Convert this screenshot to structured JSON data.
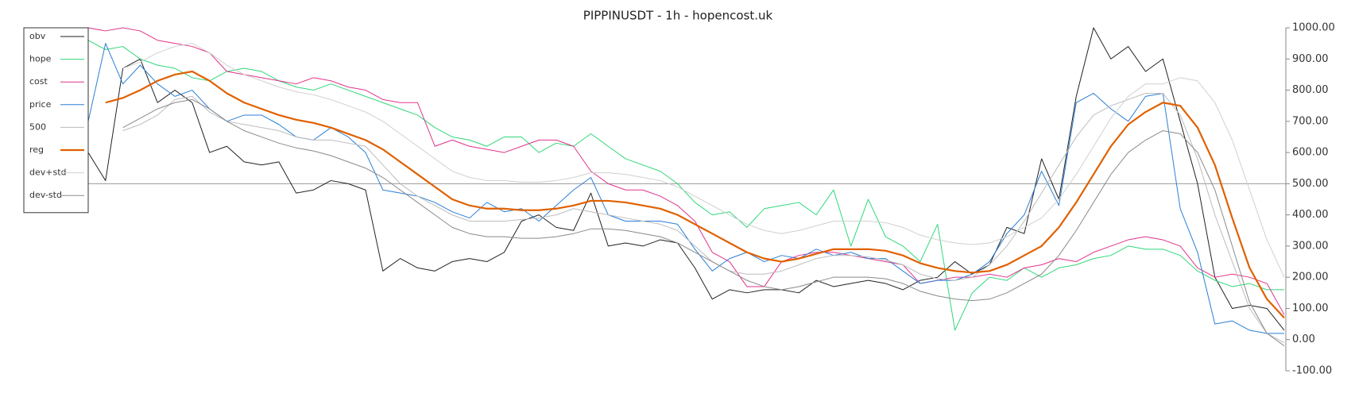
{
  "chart_data": {
    "type": "line",
    "title": "PIPPINUSDT - 1h - hopencost.uk",
    "ylim": [
      -100,
      1000
    ],
    "yticks": [
      {
        "value": -100,
        "label": "-100.00"
      },
      {
        "value": 0,
        "label": "0.00"
      },
      {
        "value": 100,
        "label": "100.00"
      },
      {
        "value": 200,
        "label": "200.00"
      },
      {
        "value": 300,
        "label": "300.00"
      },
      {
        "value": 400,
        "label": "400.00"
      },
      {
        "value": 500,
        "label": "500.00"
      },
      {
        "value": 600,
        "label": "600.00"
      },
      {
        "value": 700,
        "label": "700.00"
      },
      {
        "value": 800,
        "label": "800.00"
      },
      {
        "value": 900,
        "label": "900.00"
      },
      {
        "value": 1000,
        "label": "1000.00"
      }
    ],
    "y_axis_side": "right",
    "reference_line": 500,
    "legend": "upper left",
    "series": [
      {
        "name": "obv",
        "color": "#222222",
        "values": [
          600,
          510,
          870,
          900,
          760,
          800,
          760,
          600,
          620,
          570,
          560,
          570,
          470,
          480,
          510,
          500,
          480,
          220,
          260,
          230,
          220,
          250,
          260,
          250,
          280,
          380,
          400,
          360,
          350,
          470,
          300,
          310,
          300,
          320,
          310,
          230,
          130,
          160,
          150,
          160,
          160,
          150,
          190,
          170,
          180,
          190,
          180,
          160,
          190,
          200,
          250,
          210,
          240,
          360,
          340,
          580,
          450,
          780,
          1000,
          900,
          940,
          860,
          900,
          700,
          500,
          200,
          100,
          110,
          100,
          30
        ]
      },
      {
        "name": "hope",
        "color": "#2fd87a",
        "values": [
          960,
          930,
          940,
          900,
          880,
          870,
          840,
          830,
          860,
          870,
          860,
          830,
          810,
          800,
          820,
          800,
          780,
          760,
          740,
          720,
          680,
          650,
          640,
          620,
          650,
          650,
          600,
          630,
          620,
          660,
          620,
          580,
          560,
          540,
          500,
          440,
          400,
          410,
          360,
          420,
          430,
          440,
          400,
          480,
          300,
          450,
          330,
          300,
          250,
          370,
          30,
          150,
          200,
          190,
          230,
          200,
          230,
          240,
          260,
          270,
          300,
          290,
          290,
          270,
          220,
          190,
          170,
          180,
          160,
          160
        ]
      },
      {
        "name": "cost",
        "color": "#e0338a",
        "values": [
          1000,
          990,
          1000,
          990,
          960,
          950,
          940,
          920,
          860,
          850,
          840,
          830,
          820,
          840,
          830,
          810,
          800,
          770,
          760,
          760,
          620,
          640,
          620,
          610,
          600,
          620,
          640,
          640,
          620,
          540,
          500,
          480,
          480,
          460,
          430,
          380,
          280,
          250,
          170,
          170,
          250,
          270,
          280,
          280,
          270,
          260,
          250,
          240,
          180,
          190,
          200,
          200,
          210,
          200,
          230,
          240,
          260,
          250,
          280,
          300,
          320,
          330,
          320,
          300,
          230,
          200,
          210,
          200,
          180,
          80
        ]
      },
      {
        "name": "price",
        "color": "#2b7fd4",
        "values": [
          700,
          950,
          820,
          880,
          820,
          780,
          800,
          740,
          700,
          720,
          720,
          690,
          650,
          640,
          680,
          650,
          600,
          480,
          470,
          460,
          440,
          410,
          390,
          440,
          410,
          420,
          380,
          430,
          480,
          520,
          400,
          380,
          380,
          380,
          370,
          290,
          220,
          260,
          280,
          250,
          270,
          260,
          290,
          270,
          280,
          260,
          260,
          220,
          180,
          190,
          190,
          210,
          250,
          340,
          400,
          540,
          430,
          760,
          790,
          740,
          700,
          780,
          790,
          420,
          280,
          50,
          60,
          30,
          20,
          20
        ]
      },
      {
        "name": "500",
        "color": "#bdbdbd",
        "values": [
          null,
          null,
          670,
          690,
          720,
          770,
          780,
          730,
          700,
          690,
          680,
          670,
          650,
          640,
          640,
          630,
          620,
          560,
          500,
          460,
          430,
          400,
          380,
          380,
          380,
          385,
          390,
          400,
          420,
          410,
          400,
          390,
          380,
          370,
          350,
          300,
          250,
          220,
          210,
          210,
          220,
          240,
          260,
          270,
          270,
          265,
          255,
          240,
          210,
          195,
          190,
          200,
          240,
          300,
          380,
          470,
          560,
          650,
          720,
          750,
          770,
          790,
          790,
          720,
          580,
          400,
          250,
          100,
          20,
          -10
        ]
      },
      {
        "name": "reg",
        "color": "#e06000",
        "width": 2.2,
        "values": [
          null,
          760,
          775,
          800,
          830,
          850,
          860,
          830,
          790,
          760,
          740,
          720,
          705,
          695,
          680,
          660,
          640,
          610,
          570,
          530,
          490,
          450,
          430,
          420,
          420,
          415,
          415,
          420,
          430,
          445,
          445,
          440,
          430,
          420,
          400,
          370,
          340,
          310,
          280,
          260,
          250,
          260,
          275,
          290,
          290,
          290,
          285,
          270,
          245,
          230,
          220,
          215,
          220,
          240,
          270,
          300,
          360,
          440,
          530,
          620,
          690,
          730,
          760,
          750,
          680,
          560,
          390,
          230,
          130,
          70
        ]
      },
      {
        "name": "dev+std",
        "color": "#d0d0d0",
        "values": [
          null,
          null,
          870,
          890,
          920,
          940,
          950,
          920,
          880,
          850,
          830,
          810,
          795,
          785,
          770,
          750,
          730,
          700,
          660,
          620,
          580,
          540,
          520,
          510,
          510,
          505,
          505,
          510,
          520,
          535,
          535,
          530,
          520,
          510,
          490,
          460,
          430,
          400,
          370,
          350,
          340,
          350,
          365,
          380,
          380,
          380,
          375,
          360,
          335,
          320,
          310,
          305,
          310,
          330,
          360,
          390,
          450,
          530,
          620,
          710,
          780,
          820,
          820,
          840,
          830,
          760,
          640,
          480,
          320,
          200
        ]
      },
      {
        "name": "dev-std",
        "color": "#8a8a8a",
        "values": [
          null,
          null,
          680,
          710,
          740,
          760,
          770,
          740,
          700,
          670,
          650,
          630,
          615,
          605,
          590,
          570,
          550,
          520,
          480,
          440,
          400,
          360,
          340,
          330,
          330,
          325,
          325,
          330,
          340,
          355,
          355,
          350,
          340,
          330,
          310,
          280,
          250,
          220,
          190,
          170,
          160,
          170,
          185,
          200,
          200,
          200,
          195,
          180,
          155,
          140,
          130,
          125,
          130,
          150,
          180,
          210,
          270,
          350,
          440,
          530,
          600,
          640,
          670,
          660,
          600,
          480,
          300,
          120,
          20,
          -20
        ]
      }
    ]
  }
}
